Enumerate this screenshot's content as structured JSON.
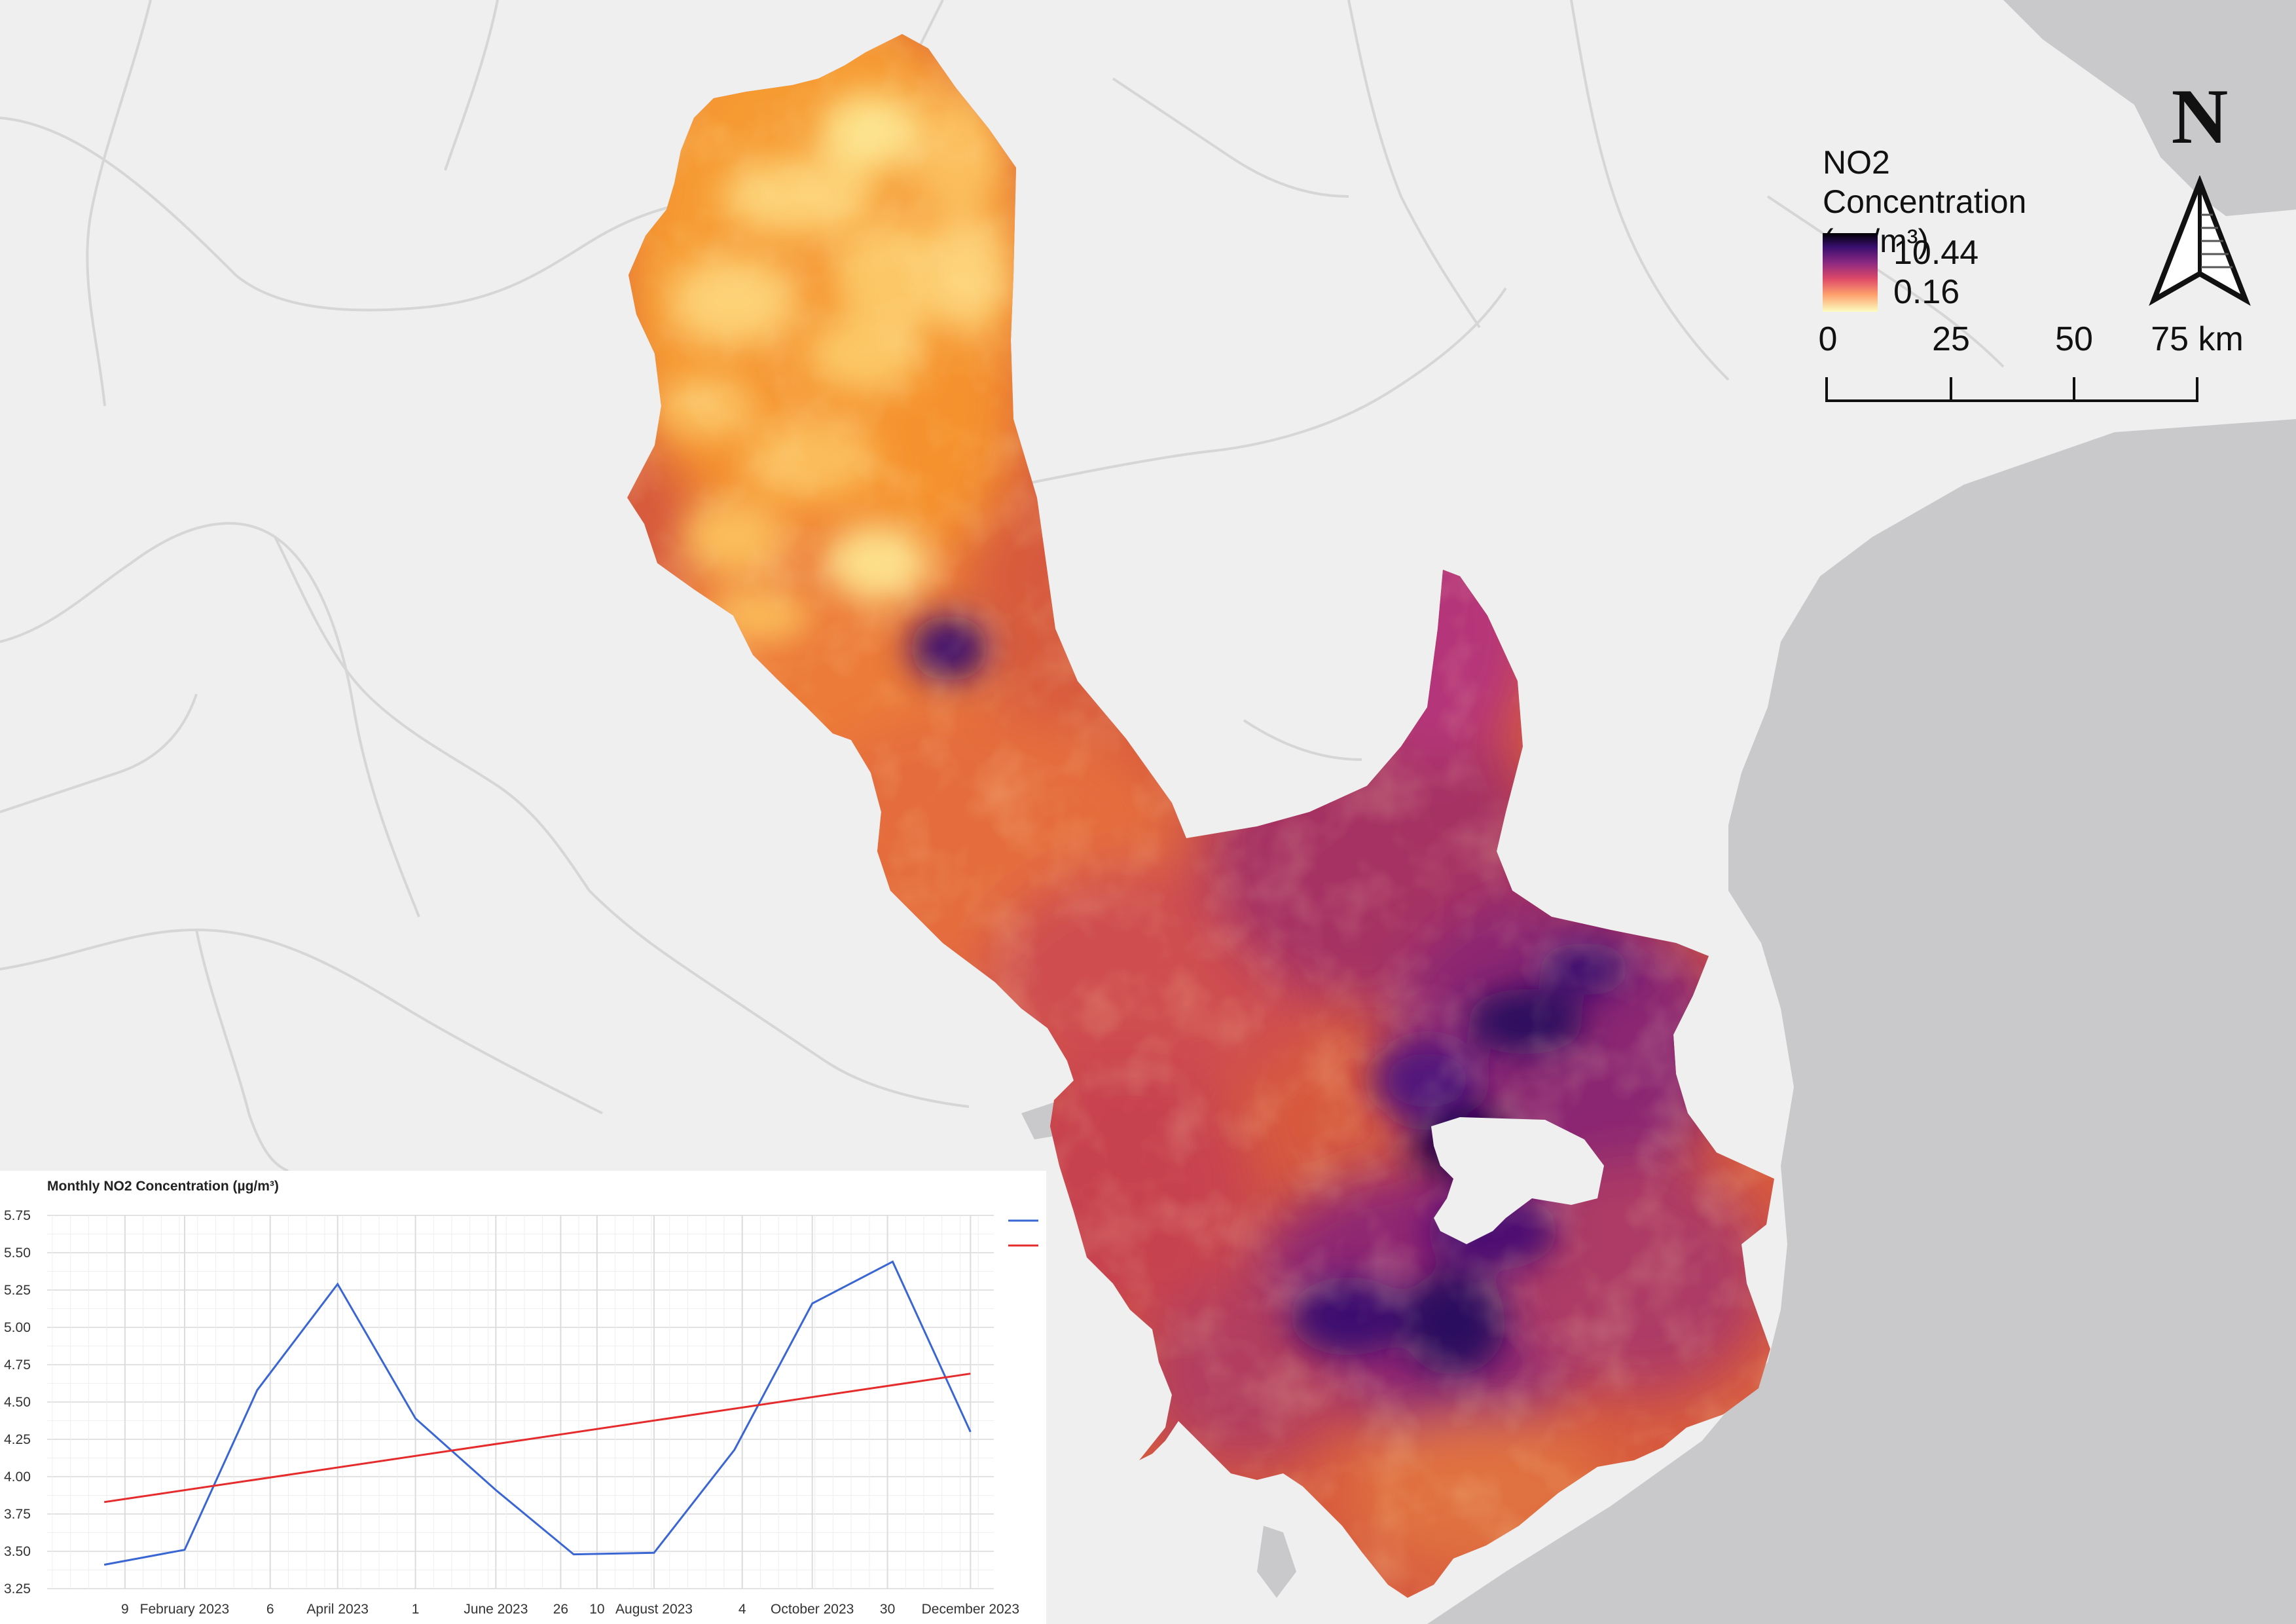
{
  "legend": {
    "title_line1": "NO2 Concentration",
    "title_line2": "(µg/m³)",
    "max_value": "10.44",
    "min_value": "0.16",
    "colormap": [
      "#000004",
      "#3b0f70",
      "#8c2981",
      "#de4968",
      "#fe9f6d",
      "#fcfdbf"
    ]
  },
  "north_arrow": {
    "letter": "N"
  },
  "scale_bar": {
    "labels": [
      "0",
      "25",
      "50",
      "75 km"
    ]
  },
  "map_colors": {
    "land": "#efefef",
    "sea": "#c9c9cc",
    "boundary": "#d6d6d6",
    "region_high": "#3b0f70",
    "region_mid": "#b5367a",
    "region_low": "#f48c30",
    "region_lowest": "#fde28a"
  },
  "chart_data": {
    "type": "line",
    "title": "Monthly NO2 Concentration (µg/m³)",
    "xlabel": "",
    "ylabel": "",
    "x_tick_labels": [
      "9",
      "February 2023",
      "6",
      "April 2023",
      "1",
      "June 2023",
      "26",
      "10",
      "August 2023",
      "4",
      "October 2023",
      "30",
      "December 2023"
    ],
    "ylim": [
      3.25,
      5.75
    ],
    "y_ticks": [
      3.25,
      3.5,
      3.75,
      4.0,
      4.25,
      4.5,
      4.75,
      5.0,
      5.25,
      5.5,
      5.75
    ],
    "y_tick_labels": [
      "3.25",
      "3.50",
      "3.75",
      "4.00",
      "4.25",
      "4.50",
      "4.75",
      "5.00",
      "5.25",
      "5.50",
      "5.75"
    ],
    "grid": true,
    "series": [
      {
        "color": "#3a66d4",
        "x": [
          "2023-01-01",
          "2023-02-01",
          "2023-03-01",
          "2023-04-01",
          "2023-05-01",
          "2023-06-01",
          "2023-07-01",
          "2023-08-01",
          "2023-09-01",
          "2023-10-01",
          "2023-11-01",
          "2023-12-01"
        ],
        "values": [
          3.41,
          3.51,
          4.58,
          5.29,
          4.39,
          3.91,
          3.48,
          3.49,
          4.18,
          5.16,
          5.44,
          4.3
        ]
      },
      {
        "color": "#e52b2b",
        "x": [
          "2023-01-01",
          "2023-12-01"
        ],
        "values": [
          3.83,
          4.69
        ]
      }
    ]
  }
}
